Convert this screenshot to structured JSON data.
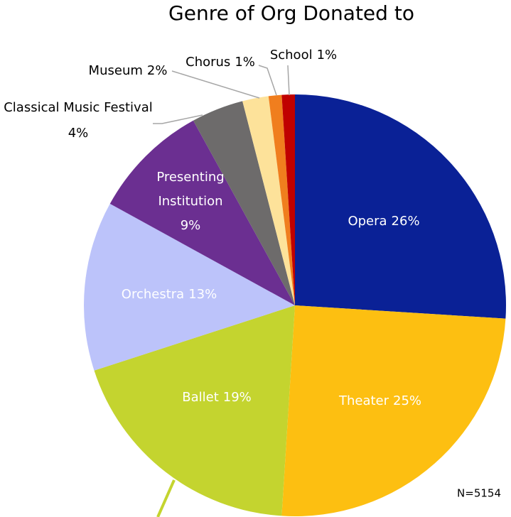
{
  "chart_data": {
    "type": "pie",
    "title": "Genre of Org Donated to",
    "categories": [
      "Opera",
      "Theater",
      "Ballet",
      "Orchestra",
      "Presenting Institution",
      "Classical Music Festival",
      "Museum",
      "Chorus",
      "School"
    ],
    "values": [
      26,
      25,
      19,
      13,
      9,
      4,
      2,
      1,
      1
    ],
    "value_labels": [
      "26%",
      "25%",
      "19%",
      "13%",
      "9%",
      "4%",
      "2%",
      "1%",
      "1%"
    ],
    "colors": [
      "#0a2196",
      "#fdbf11",
      "#c4d42f",
      "#bcc3fa",
      "#6b2f91",
      "#6d6b6b",
      "#fde29a",
      "#f07e1e",
      "#c00000"
    ],
    "annotation": "N=5154"
  }
}
